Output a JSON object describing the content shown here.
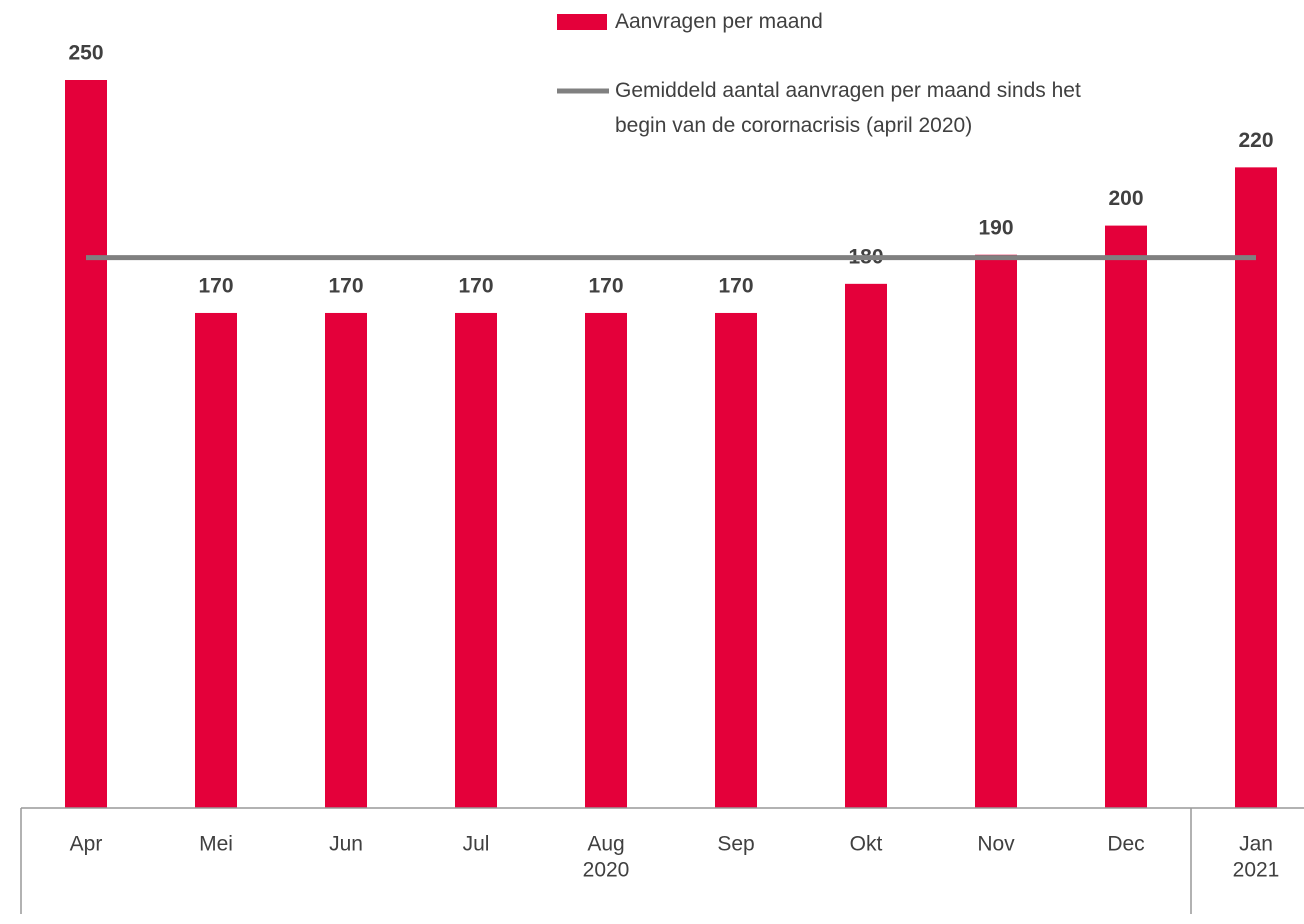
{
  "chart_data": {
    "type": "bar",
    "categories": [
      "Apr",
      "Mei",
      "Jun",
      "Jul",
      "Aug",
      "Sep",
      "Okt",
      "Nov",
      "Dec",
      "Jan"
    ],
    "groups": [
      {
        "label": "2020",
        "count": 9
      },
      {
        "label": "2021",
        "count": 1
      }
    ],
    "series": [
      {
        "name": "Aanvragen per maand",
        "color": "#e4003a",
        "values": [
          250,
          170,
          170,
          170,
          170,
          170,
          180,
          190,
          200,
          220
        ]
      },
      {
        "name": "Gemiddeld aantal aanvragen per maand sinds het begin van de corornacrisis (april 2020)",
        "type": "line",
        "color": "#808080",
        "values": [
          189,
          189,
          189,
          189,
          189,
          189,
          189,
          189,
          189,
          189
        ]
      }
    ],
    "ylim": [
      0,
      250
    ]
  }
}
